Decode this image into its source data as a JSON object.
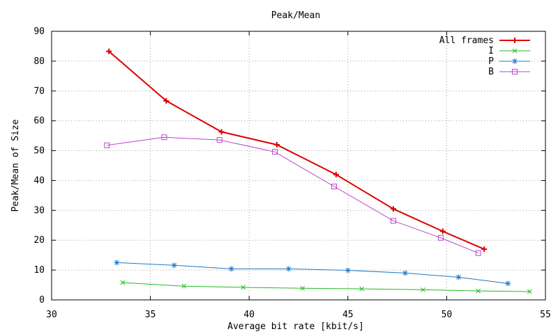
{
  "chart_data": {
    "type": "line",
    "title": "Peak/Mean",
    "xlabel": "Average bit rate [kbit/s]",
    "ylabel": "Peak/Mean of Size",
    "xlim": [
      30,
      55
    ],
    "ylim": [
      0,
      90
    ],
    "x_ticks": [
      "30",
      "35",
      "40",
      "45",
      "50",
      "55"
    ],
    "y_ticks": [
      "0",
      "10",
      "20",
      "30",
      "40",
      "50",
      "60",
      "70",
      "80",
      "90"
    ],
    "grid": true,
    "legend_position": "top-right",
    "series": [
      {
        "name": "All frames",
        "color": "#dd0000",
        "marker": "plus",
        "x": [
          32.9,
          35.8,
          38.6,
          41.4,
          44.4,
          47.3,
          49.8,
          51.9
        ],
        "y": [
          83.3,
          66.7,
          56.3,
          52.0,
          42.0,
          30.5,
          23.0,
          17.0
        ]
      },
      {
        "name": "I",
        "color": "#22bb22",
        "marker": "cross",
        "x": [
          33.6,
          36.7,
          39.7,
          42.7,
          45.7,
          48.8,
          51.6,
          54.2
        ],
        "y": [
          5.8,
          4.6,
          4.2,
          3.9,
          3.7,
          3.4,
          3.0,
          2.8
        ]
      },
      {
        "name": "P",
        "color": "#1c79c8",
        "marker": "star",
        "x": [
          33.3,
          36.2,
          39.1,
          42.0,
          45.0,
          47.9,
          50.6,
          53.1
        ],
        "y": [
          12.5,
          11.6,
          10.4,
          10.4,
          9.9,
          9.0,
          7.6,
          5.5
        ]
      },
      {
        "name": "B",
        "color": "#bb44cc",
        "marker": "square",
        "x": [
          32.8,
          35.7,
          38.5,
          41.3,
          44.3,
          47.3,
          49.7,
          51.6
        ],
        "y": [
          51.8,
          54.5,
          53.6,
          49.6,
          38.0,
          26.5,
          20.8,
          15.7
        ]
      }
    ]
  }
}
